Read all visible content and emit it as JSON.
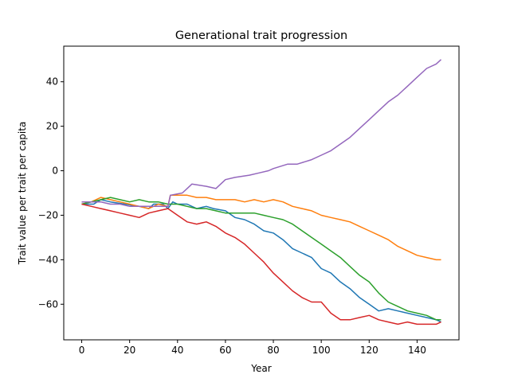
{
  "chart_data": {
    "type": "line",
    "title": "Generational trait progression",
    "xlabel": "Year",
    "ylabel": "Trait value per trait per capita",
    "xlim": [
      -7.5,
      157.5
    ],
    "ylim": [
      -76,
      56
    ],
    "xticks": [
      0,
      20,
      40,
      60,
      80,
      100,
      120,
      140
    ],
    "yticks": [
      -60,
      -40,
      -20,
      0,
      20,
      40
    ],
    "grid": false,
    "legend": "none",
    "series": [
      {
        "color": "#1f77b4",
        "points": [
          [
            0,
            -15
          ],
          [
            5,
            -15
          ],
          [
            8,
            -13
          ],
          [
            12,
            -14
          ],
          [
            18,
            -15
          ],
          [
            24,
            -16
          ],
          [
            28,
            -17
          ],
          [
            30,
            -15
          ],
          [
            34,
            -15
          ],
          [
            36,
            -17
          ],
          [
            38,
            -14
          ],
          [
            40,
            -15
          ],
          [
            44,
            -15
          ],
          [
            48,
            -17
          ],
          [
            52,
            -16
          ],
          [
            55,
            -17
          ],
          [
            60,
            -18
          ],
          [
            64,
            -21
          ],
          [
            68,
            -22
          ],
          [
            72,
            -24
          ],
          [
            76,
            -27
          ],
          [
            80,
            -28
          ],
          [
            84,
            -31
          ],
          [
            88,
            -35
          ],
          [
            92,
            -37
          ],
          [
            96,
            -39
          ],
          [
            100,
            -44
          ],
          [
            104,
            -46
          ],
          [
            108,
            -50
          ],
          [
            112,
            -53
          ],
          [
            116,
            -57
          ],
          [
            120,
            -60
          ],
          [
            124,
            -63
          ],
          [
            128,
            -62
          ],
          [
            132,
            -63
          ],
          [
            136,
            -64
          ],
          [
            140,
            -65
          ],
          [
            144,
            -66
          ],
          [
            148,
            -67
          ],
          [
            150,
            -68
          ]
        ]
      },
      {
        "color": "#ff7f0e",
        "points": [
          [
            0,
            -15
          ],
          [
            4,
            -14
          ],
          [
            8,
            -12
          ],
          [
            12,
            -13
          ],
          [
            16,
            -14
          ],
          [
            20,
            -15
          ],
          [
            24,
            -16
          ],
          [
            28,
            -17
          ],
          [
            32,
            -15
          ],
          [
            36,
            -16
          ],
          [
            37,
            -11
          ],
          [
            40,
            -11
          ],
          [
            44,
            -11
          ],
          [
            48,
            -12
          ],
          [
            52,
            -12
          ],
          [
            56,
            -13
          ],
          [
            60,
            -13
          ],
          [
            64,
            -13
          ],
          [
            68,
            -14
          ],
          [
            72,
            -13
          ],
          [
            76,
            -14
          ],
          [
            80,
            -13
          ],
          [
            84,
            -14
          ],
          [
            88,
            -16
          ],
          [
            92,
            -17
          ],
          [
            96,
            -18
          ],
          [
            100,
            -20
          ],
          [
            104,
            -21
          ],
          [
            108,
            -22
          ],
          [
            112,
            -23
          ],
          [
            116,
            -25
          ],
          [
            120,
            -27
          ],
          [
            124,
            -29
          ],
          [
            128,
            -31
          ],
          [
            132,
            -34
          ],
          [
            136,
            -36
          ],
          [
            140,
            -38
          ],
          [
            144,
            -39
          ],
          [
            148,
            -40
          ],
          [
            150,
            -40
          ]
        ]
      },
      {
        "color": "#2ca02c",
        "points": [
          [
            0,
            -15
          ],
          [
            4,
            -14
          ],
          [
            8,
            -13
          ],
          [
            12,
            -12
          ],
          [
            16,
            -13
          ],
          [
            20,
            -14
          ],
          [
            24,
            -13
          ],
          [
            28,
            -14
          ],
          [
            32,
            -14
          ],
          [
            36,
            -15
          ],
          [
            40,
            -15
          ],
          [
            44,
            -16
          ],
          [
            48,
            -17
          ],
          [
            52,
            -17
          ],
          [
            56,
            -18
          ],
          [
            60,
            -19
          ],
          [
            64,
            -19
          ],
          [
            68,
            -19
          ],
          [
            72,
            -19
          ],
          [
            76,
            -20
          ],
          [
            80,
            -21
          ],
          [
            84,
            -22
          ],
          [
            88,
            -24
          ],
          [
            92,
            -27
          ],
          [
            96,
            -30
          ],
          [
            100,
            -33
          ],
          [
            104,
            -36
          ],
          [
            108,
            -39
          ],
          [
            112,
            -43
          ],
          [
            116,
            -47
          ],
          [
            120,
            -50
          ],
          [
            124,
            -55
          ],
          [
            128,
            -59
          ],
          [
            132,
            -61
          ],
          [
            136,
            -63
          ],
          [
            140,
            -64
          ],
          [
            144,
            -65
          ],
          [
            148,
            -67
          ],
          [
            150,
            -67
          ]
        ]
      },
      {
        "color": "#d62728",
        "points": [
          [
            0,
            -15
          ],
          [
            4,
            -16
          ],
          [
            8,
            -17
          ],
          [
            12,
            -18
          ],
          [
            16,
            -19
          ],
          [
            20,
            -20
          ],
          [
            24,
            -21
          ],
          [
            28,
            -19
          ],
          [
            32,
            -18
          ],
          [
            36,
            -17
          ],
          [
            40,
            -20
          ],
          [
            44,
            -23
          ],
          [
            48,
            -24
          ],
          [
            52,
            -23
          ],
          [
            56,
            -25
          ],
          [
            60,
            -28
          ],
          [
            64,
            -30
          ],
          [
            68,
            -33
          ],
          [
            72,
            -37
          ],
          [
            76,
            -41
          ],
          [
            80,
            -46
          ],
          [
            84,
            -50
          ],
          [
            88,
            -54
          ],
          [
            92,
            -57
          ],
          [
            96,
            -59
          ],
          [
            100,
            -59
          ],
          [
            104,
            -64
          ],
          [
            108,
            -67
          ],
          [
            112,
            -67
          ],
          [
            116,
            -66
          ],
          [
            120,
            -65
          ],
          [
            124,
            -67
          ],
          [
            128,
            -68
          ],
          [
            132,
            -69
          ],
          [
            136,
            -68
          ],
          [
            140,
            -69
          ],
          [
            144,
            -69
          ],
          [
            148,
            -69
          ],
          [
            150,
            -68
          ]
        ]
      },
      {
        "color": "#9467bd",
        "points": [
          [
            0,
            -14
          ],
          [
            4,
            -14
          ],
          [
            8,
            -14
          ],
          [
            12,
            -15
          ],
          [
            16,
            -15
          ],
          [
            20,
            -16
          ],
          [
            24,
            -16
          ],
          [
            28,
            -16
          ],
          [
            32,
            -16
          ],
          [
            36,
            -16
          ],
          [
            37,
            -11
          ],
          [
            42,
            -10
          ],
          [
            44,
            -8
          ],
          [
            46,
            -6
          ],
          [
            52,
            -7
          ],
          [
            56,
            -8
          ],
          [
            60,
            -4
          ],
          [
            64,
            -3
          ],
          [
            70,
            -2
          ],
          [
            74,
            -1
          ],
          [
            78,
            0
          ],
          [
            80,
            1
          ],
          [
            86,
            3
          ],
          [
            90,
            3
          ],
          [
            96,
            5
          ],
          [
            100,
            7
          ],
          [
            104,
            9
          ],
          [
            108,
            12
          ],
          [
            112,
            15
          ],
          [
            116,
            19
          ],
          [
            120,
            23
          ],
          [
            124,
            27
          ],
          [
            128,
            31
          ],
          [
            132,
            34
          ],
          [
            136,
            38
          ],
          [
            140,
            42
          ],
          [
            144,
            46
          ],
          [
            148,
            48
          ],
          [
            150,
            50
          ]
        ]
      }
    ]
  }
}
